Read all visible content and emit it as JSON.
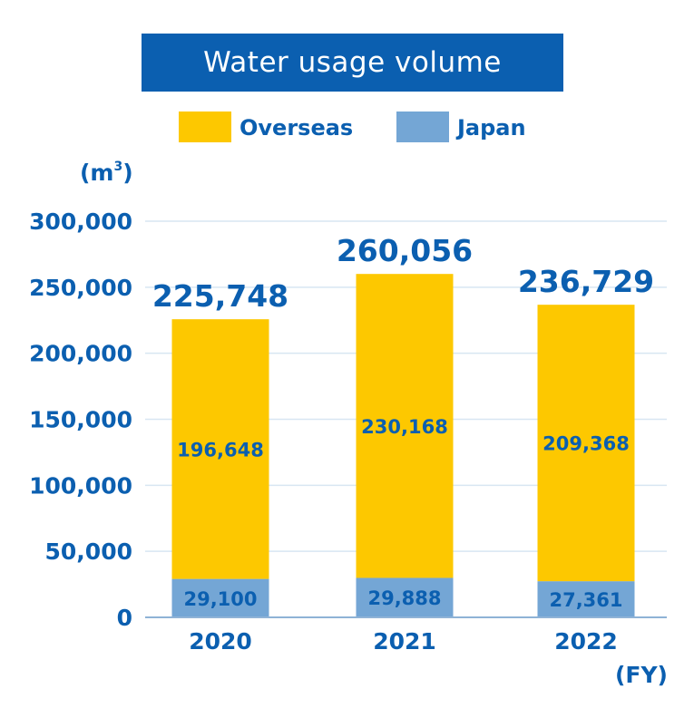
{
  "chart_data": {
    "type": "bar",
    "stacked": true,
    "title": "Water usage volume",
    "unit_label": "(m3)",
    "x_unit_label": "(FY)",
    "categories": [
      "2020",
      "2021",
      "2022"
    ],
    "series": [
      {
        "name": "Japan",
        "values": [
          29100,
          29888,
          27361
        ],
        "value_labels": [
          "29,100",
          "29,888",
          "27,361"
        ],
        "color": "#74a6d5"
      },
      {
        "name": "Overseas",
        "values": [
          196648,
          230168,
          209368
        ],
        "value_labels": [
          "196,648",
          "230,168",
          "209,368"
        ],
        "color": "#fdc800"
      }
    ],
    "totals": [
      225748,
      260056,
      236729
    ],
    "total_labels": [
      "225,748",
      "260,056",
      "236,729"
    ],
    "ylim": [
      0,
      300000
    ],
    "yticks": [
      0,
      50000,
      100000,
      150000,
      200000,
      250000,
      300000
    ],
    "ytick_labels": [
      "0",
      "50,000",
      "100,000",
      "150,000",
      "200,000",
      "250,000",
      "300,000"
    ],
    "grid": true,
    "legend": [
      {
        "label": "Overseas",
        "color": "#fdc800"
      },
      {
        "label": "Japan",
        "color": "#74a6d5"
      }
    ],
    "legend_position": "top",
    "colors": {
      "text": "#0b5fb0",
      "title_bg": "#0b5fb0",
      "grid": "#d8e6f2"
    }
  }
}
